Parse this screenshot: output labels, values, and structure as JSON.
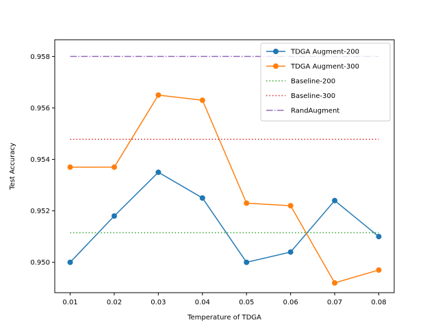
{
  "chart_data": {
    "type": "line",
    "title": "",
    "xlabel": "Temperature of TDGA",
    "ylabel": "Test Accuracy",
    "x": [
      0.01,
      0.02,
      0.03,
      0.04,
      0.05,
      0.06,
      0.07,
      0.08
    ],
    "x_tick_labels": [
      "0.01",
      "0.02",
      "0.03",
      "0.04",
      "0.05",
      "0.06",
      "0.07",
      "0.08"
    ],
    "y_ticks": [
      0.95,
      0.952,
      0.954,
      0.956,
      0.958
    ],
    "y_tick_labels": [
      "0.950",
      "0.952",
      "0.954",
      "0.956",
      "0.958"
    ],
    "xlim": [
      0.0065,
      0.0835
    ],
    "ylim": [
      0.94882,
      0.95865
    ],
    "grid": false,
    "legend_position": "top-right",
    "series": [
      {
        "name": "TDGA Augment-200",
        "color": "#1f77b4",
        "style": "solid",
        "marker": "circle",
        "values": [
          0.95,
          0.9518,
          0.9535,
          0.9525,
          0.95,
          0.9504,
          0.9524,
          0.951
        ]
      },
      {
        "name": "TDGA Augment-300",
        "color": "#ff7f0e",
        "style": "solid",
        "marker": "circle",
        "values": [
          0.9537,
          0.9537,
          0.9565,
          0.9563,
          0.9523,
          0.9522,
          0.9492,
          0.9497
        ]
      },
      {
        "name": "Baseline-200",
        "color": "#2ca02c",
        "style": "dotted",
        "marker": "none",
        "values": [
          0.95115,
          0.95115,
          0.95115,
          0.95115,
          0.95115,
          0.95115,
          0.95115,
          0.95115
        ]
      },
      {
        "name": "Baseline-300",
        "color": "#d62728",
        "style": "dotted",
        "marker": "none",
        "values": [
          0.95478,
          0.95478,
          0.95478,
          0.95478,
          0.95478,
          0.95478,
          0.95478,
          0.95478
        ]
      },
      {
        "name": "RandAugment",
        "color": "#9467bd",
        "style": "dashdot",
        "marker": "none",
        "values": [
          0.958,
          0.958,
          0.958,
          0.958,
          0.958,
          0.958,
          0.958,
          0.958
        ]
      }
    ]
  }
}
